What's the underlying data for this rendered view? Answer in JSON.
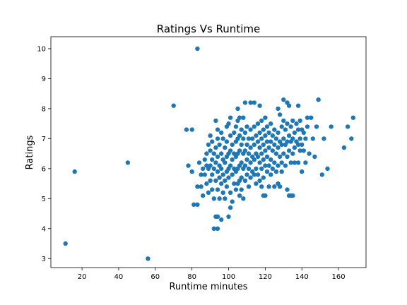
{
  "chart_data": {
    "type": "scatter",
    "title": "Ratings Vs Runtime",
    "xlabel": "Runtime minutes",
    "ylabel": "Ratings",
    "xlim": [
      3,
      175
    ],
    "ylim": [
      2.7,
      10.4
    ],
    "xticks": [
      20,
      40,
      60,
      80,
      100,
      120,
      140,
      160
    ],
    "yticks": [
      3,
      4,
      5,
      6,
      7,
      8,
      9,
      10
    ],
    "grid": false,
    "marker_color": "#1f77b4",
    "series": [
      {
        "points": [
          [
            11,
            3.5
          ],
          [
            16,
            5.9
          ],
          [
            45,
            6.2
          ],
          [
            56,
            3.0
          ],
          [
            70,
            8.1
          ],
          [
            83,
            10.0
          ],
          [
            77,
            7.3
          ],
          [
            80,
            7.3
          ],
          [
            78,
            6.1
          ],
          [
            80,
            5.9
          ],
          [
            81,
            4.8
          ],
          [
            83,
            4.8
          ],
          [
            83,
            5.4
          ],
          [
            84,
            6.2
          ],
          [
            85,
            5.8
          ],
          [
            85,
            5.4
          ],
          [
            86,
            6.0
          ],
          [
            86,
            5.1
          ],
          [
            87,
            6.3
          ],
          [
            87,
            5.8
          ],
          [
            88,
            6.5
          ],
          [
            88,
            6.1
          ],
          [
            88,
            5.5
          ],
          [
            89,
            6.8
          ],
          [
            89,
            6.0
          ],
          [
            89,
            5.2
          ],
          [
            90,
            7.1
          ],
          [
            90,
            6.6
          ],
          [
            90,
            6.1
          ],
          [
            90,
            5.6
          ],
          [
            91,
            6.9
          ],
          [
            91,
            6.3
          ],
          [
            91,
            5.8
          ],
          [
            91,
            5.3
          ],
          [
            92,
            6.5
          ],
          [
            92,
            6.0
          ],
          [
            92,
            5.0
          ],
          [
            92,
            4.0
          ],
          [
            93,
            7.6
          ],
          [
            93,
            6.7
          ],
          [
            93,
            6.2
          ],
          [
            93,
            5.6
          ],
          [
            93,
            4.4
          ],
          [
            94,
            7.3
          ],
          [
            94,
            7.0
          ],
          [
            94,
            6.4
          ],
          [
            94,
            5.9
          ],
          [
            94,
            5.3
          ],
          [
            94,
            4.4
          ],
          [
            94,
            4.0
          ],
          [
            95,
            6.8
          ],
          [
            95,
            6.1
          ],
          [
            95,
            5.7
          ],
          [
            95,
            5.0
          ],
          [
            96,
            7.2
          ],
          [
            96,
            6.5
          ],
          [
            96,
            6.0
          ],
          [
            96,
            5.5
          ],
          [
            96,
            4.3
          ],
          [
            97,
            7.0
          ],
          [
            97,
            6.3
          ],
          [
            97,
            5.8
          ],
          [
            97,
            5.2
          ],
          [
            98,
            6.7
          ],
          [
            98,
            6.2
          ],
          [
            98,
            5.6
          ],
          [
            98,
            5.0
          ],
          [
            99,
            7.4
          ],
          [
            99,
            6.9
          ],
          [
            99,
            6.4
          ],
          [
            99,
            5.9
          ],
          [
            99,
            5.4
          ],
          [
            100,
            7.5
          ],
          [
            100,
            6.5
          ],
          [
            100,
            6.0
          ],
          [
            100,
            5.7
          ],
          [
            100,
            4.4
          ],
          [
            101,
            7.7
          ],
          [
            101,
            7.1
          ],
          [
            101,
            6.6
          ],
          [
            101,
            6.1
          ],
          [
            101,
            5.2
          ],
          [
            101,
            4.7
          ],
          [
            102,
            6.8
          ],
          [
            102,
            6.3
          ],
          [
            102,
            5.8
          ],
          [
            102,
            4.9
          ],
          [
            103,
            7.2
          ],
          [
            103,
            6.5
          ],
          [
            103,
            6.0
          ],
          [
            103,
            5.5
          ],
          [
            104,
            7.4
          ],
          [
            104,
            6.9
          ],
          [
            104,
            6.4
          ],
          [
            104,
            5.9
          ],
          [
            104,
            5.3
          ],
          [
            105,
            8.0
          ],
          [
            105,
            7.6
          ],
          [
            105,
            7.0
          ],
          [
            105,
            6.5
          ],
          [
            105,
            6.0
          ],
          [
            105,
            5.5
          ],
          [
            106,
            7.7
          ],
          [
            106,
            7.1
          ],
          [
            106,
            6.6
          ],
          [
            106,
            6.1
          ],
          [
            106,
            5.6
          ],
          [
            106,
            5.1
          ],
          [
            107,
            7.3
          ],
          [
            107,
            6.8
          ],
          [
            107,
            6.2
          ],
          [
            107,
            5.7
          ],
          [
            107,
            5.3
          ],
          [
            108,
            7.7
          ],
          [
            108,
            7.0
          ],
          [
            108,
            6.5
          ],
          [
            108,
            6.0
          ],
          [
            108,
            5.0
          ],
          [
            109,
            8.2
          ],
          [
            109,
            7.2
          ],
          [
            109,
            6.6
          ],
          [
            109,
            6.1
          ],
          [
            109,
            5.6
          ],
          [
            110,
            7.4
          ],
          [
            110,
            6.8
          ],
          [
            110,
            6.3
          ],
          [
            110,
            5.8
          ],
          [
            111,
            7.0
          ],
          [
            111,
            6.5
          ],
          [
            111,
            6.0
          ],
          [
            111,
            5.4
          ],
          [
            112,
            8.2
          ],
          [
            112,
            7.3
          ],
          [
            112,
            6.7
          ],
          [
            112,
            6.2
          ],
          [
            112,
            5.7
          ],
          [
            113,
            7.0
          ],
          [
            113,
            6.4
          ],
          [
            113,
            5.9
          ],
          [
            114,
            8.2
          ],
          [
            114,
            7.4
          ],
          [
            114,
            6.8
          ],
          [
            114,
            6.3
          ],
          [
            114,
            5.8
          ],
          [
            115,
            7.1
          ],
          [
            115,
            6.5
          ],
          [
            115,
            6.0
          ],
          [
            115,
            5.5
          ],
          [
            116,
            7.5
          ],
          [
            116,
            6.9
          ],
          [
            116,
            6.4
          ],
          [
            116,
            5.8
          ],
          [
            117,
            8.1
          ],
          [
            117,
            7.2
          ],
          [
            117,
            6.7
          ],
          [
            117,
            6.2
          ],
          [
            117,
            5.6
          ],
          [
            118,
            7.6
          ],
          [
            118,
            7.0
          ],
          [
            118,
            6.5
          ],
          [
            118,
            6.0
          ],
          [
            118,
            5.4
          ],
          [
            119,
            7.3
          ],
          [
            119,
            6.8
          ],
          [
            119,
            6.3
          ],
          [
            119,
            5.7
          ],
          [
            119,
            5.1
          ],
          [
            120,
            7.7
          ],
          [
            120,
            7.1
          ],
          [
            120,
            6.6
          ],
          [
            120,
            6.1
          ],
          [
            120,
            5.1
          ],
          [
            121,
            7.4
          ],
          [
            121,
            6.9
          ],
          [
            121,
            6.4
          ],
          [
            121,
            5.9
          ],
          [
            122,
            7.2
          ],
          [
            122,
            6.7
          ],
          [
            122,
            6.1
          ],
          [
            122,
            5.4
          ],
          [
            123,
            7.5
          ],
          [
            123,
            6.9
          ],
          [
            123,
            6.3
          ],
          [
            123,
            5.8
          ],
          [
            124,
            7.1
          ],
          [
            124,
            6.6
          ],
          [
            124,
            6.0
          ],
          [
            125,
            7.3
          ],
          [
            125,
            6.8
          ],
          [
            125,
            6.2
          ],
          [
            125,
            5.4
          ],
          [
            126,
            7.0
          ],
          [
            126,
            6.5
          ],
          [
            126,
            5.9
          ],
          [
            127,
            8.0
          ],
          [
            127,
            7.2
          ],
          [
            127,
            6.7
          ],
          [
            127,
            6.1
          ],
          [
            127,
            5.5
          ],
          [
            128,
            7.8
          ],
          [
            128,
            6.9
          ],
          [
            128,
            6.4
          ],
          [
            128,
            5.4
          ],
          [
            129,
            7.4
          ],
          [
            129,
            6.8
          ],
          [
            129,
            6.2
          ],
          [
            129,
            5.9
          ],
          [
            130,
            8.3
          ],
          [
            130,
            7.6
          ],
          [
            130,
            7.0
          ],
          [
            130,
            6.5
          ],
          [
            131,
            7.3
          ],
          [
            131,
            6.8
          ],
          [
            131,
            6.1
          ],
          [
            132,
            8.2
          ],
          [
            132,
            7.5
          ],
          [
            132,
            6.9
          ],
          [
            132,
            6.4
          ],
          [
            132,
            5.3
          ],
          [
            133,
            8.1
          ],
          [
            133,
            7.1
          ],
          [
            133,
            6.6
          ],
          [
            133,
            5.1
          ],
          [
            134,
            7.4
          ],
          [
            134,
            6.9
          ],
          [
            134,
            6.2
          ],
          [
            134,
            5.1
          ],
          [
            135,
            7.6
          ],
          [
            135,
            7.0
          ],
          [
            135,
            6.5
          ],
          [
            135,
            5.1
          ],
          [
            136,
            7.2
          ],
          [
            136,
            6.7
          ],
          [
            136,
            6.2
          ],
          [
            137,
            7.5
          ],
          [
            137,
            6.9
          ],
          [
            138,
            8.1
          ],
          [
            138,
            7.3
          ],
          [
            138,
            6.8
          ],
          [
            138,
            6.2
          ],
          [
            139,
            7.6
          ],
          [
            139,
            7.0
          ],
          [
            139,
            6.6
          ],
          [
            140,
            7.3
          ],
          [
            140,
            6.8
          ],
          [
            140,
            5.9
          ],
          [
            141,
            7.2
          ],
          [
            141,
            6.6
          ],
          [
            142,
            7.0
          ],
          [
            142,
            6.2
          ],
          [
            143,
            7.7
          ],
          [
            143,
            7.4
          ],
          [
            144,
            6.5
          ],
          [
            145,
            7.7
          ],
          [
            146,
            7.0
          ],
          [
            147,
            6.4
          ],
          [
            148,
            7.4
          ],
          [
            149,
            8.3
          ],
          [
            151,
            5.8
          ],
          [
            152,
            7.0
          ],
          [
            154,
            6.0
          ],
          [
            156,
            7.4
          ],
          [
            163,
            6.7
          ],
          [
            165,
            7.4
          ],
          [
            167,
            7.0
          ],
          [
            168,
            7.7
          ]
        ]
      }
    ]
  }
}
